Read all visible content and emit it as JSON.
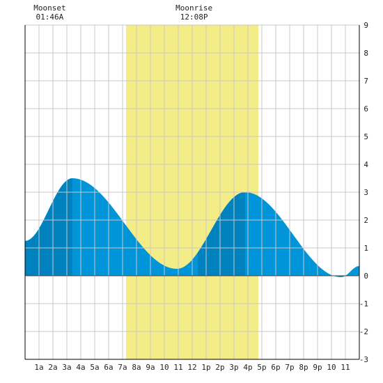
{
  "chart_data": {
    "type": "area",
    "x_unit": "hour",
    "xlim": [
      0,
      24
    ],
    "ylim": [
      -3,
      9
    ],
    "y_ticks": [
      -3,
      -2,
      -1,
      0,
      1,
      2,
      3,
      4,
      5,
      6,
      7,
      8,
      9
    ],
    "x_tick_hours": [
      1,
      2,
      3,
      4,
      5,
      6,
      7,
      8,
      9,
      10,
      11,
      12,
      13,
      14,
      15,
      16,
      17,
      18,
      19,
      20,
      21,
      22,
      23
    ],
    "x_tick_labels": [
      "1a",
      "2a",
      "3a",
      "4a",
      "5a",
      "6a",
      "7a",
      "8a",
      "9a",
      "10",
      "11",
      "12",
      "1p",
      "2p",
      "3p",
      "4p",
      "5p",
      "6p",
      "7p",
      "8p",
      "9p",
      "10",
      "11"
    ],
    "grid": true,
    "daylight": {
      "start": 7.25,
      "end": 16.75,
      "color": "#f4ec86"
    },
    "shaded_band": {
      "start": 3.4,
      "end": 15.8
    },
    "colors": {
      "area": "#0095d9",
      "area_dark": "#0082bf",
      "grid": "#c8c8c8",
      "axis": "#000000"
    },
    "tide_points": [
      [
        0,
        1.25
      ],
      [
        3.4,
        3.5
      ],
      [
        10.9,
        0.25
      ],
      [
        15.8,
        3.0
      ],
      [
        22.7,
        -0.05
      ],
      [
        24,
        0.35
      ]
    ],
    "annotations": [
      {
        "label": "Moonset",
        "time": "01:46A",
        "x": 1.77
      },
      {
        "label": "Moonrise",
        "time": "12:08P",
        "x": 12.13
      }
    ]
  }
}
